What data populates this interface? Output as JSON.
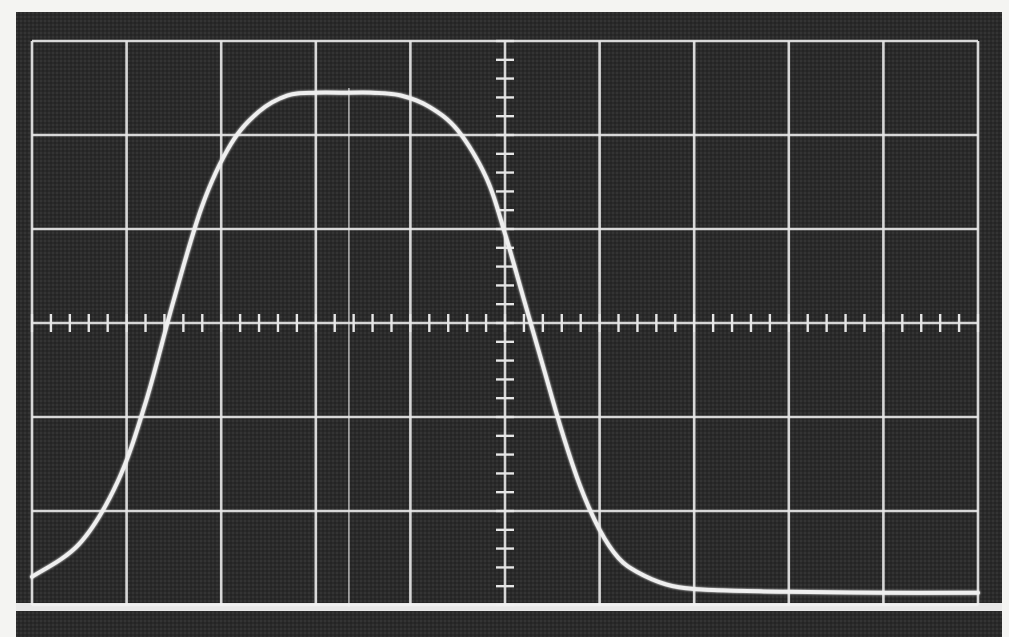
{
  "chart_data": {
    "type": "line",
    "title": "",
    "xlabel": "",
    "ylabel": "",
    "grid": true,
    "grid_divisions": {
      "x": 10,
      "y": 6
    },
    "xlim": [
      0,
      10
    ],
    "ylim": [
      -3,
      3
    ],
    "minor_ticks_per_division": 5,
    "series": [
      {
        "x": [
          0.0,
          0.5,
          0.9,
          1.2,
          1.5,
          1.8,
          2.1,
          2.4,
          2.7,
          3.0,
          3.3,
          3.6,
          3.9,
          4.2,
          4.5,
          4.8,
          5.0,
          5.2,
          5.4,
          5.6,
          5.8,
          6.0,
          6.2,
          6.4,
          6.7,
          7.0,
          7.5,
          8.0,
          9.0,
          10.0
        ],
        "y": [
          -2.7,
          -2.35,
          -1.7,
          -0.85,
          0.25,
          1.25,
          1.9,
          2.25,
          2.42,
          2.45,
          2.45,
          2.45,
          2.42,
          2.3,
          2.05,
          1.55,
          0.95,
          0.25,
          -0.45,
          -1.15,
          -1.75,
          -2.2,
          -2.5,
          -2.65,
          -2.78,
          -2.83,
          -2.85,
          -2.86,
          -2.87,
          -2.87
        ]
      }
    ]
  },
  "colors": {
    "screen_background": "#262626",
    "graticule": "#e6e6e6",
    "trace": "#efefef",
    "baseline": "#f2f2f2",
    "bezel": "#f4f4f2"
  }
}
